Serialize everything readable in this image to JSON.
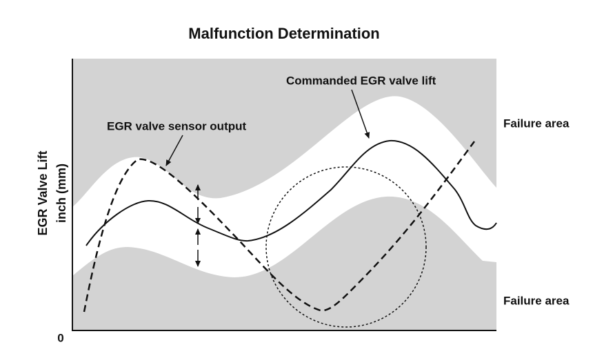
{
  "title": "Malfunction Determination",
  "y_axis": {
    "label_lines": [
      "EGR Valve Lift",
      "inch (mm)"
    ],
    "origin": "0"
  },
  "annotations": {
    "sensor": "EGR valve sensor output",
    "commanded": "Commanded EGR valve lift"
  },
  "regions": {
    "upper": "Failure area",
    "lower": "Failure area"
  }
}
